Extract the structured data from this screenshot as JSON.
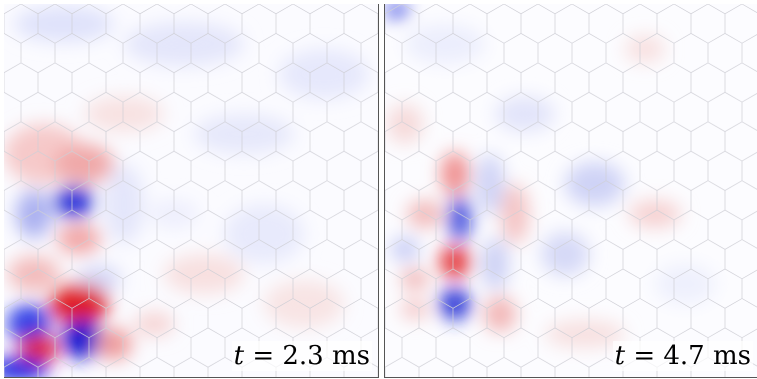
{
  "panels": [
    {
      "id": "left",
      "time_var": "t",
      "equals": "=",
      "time_value": "2.3",
      "unit": "ms"
    },
    {
      "id": "right",
      "time_var": "t",
      "equals": "=",
      "time_value": "4.7",
      "unit": "ms"
    }
  ],
  "colors": {
    "positive": "#e8111a",
    "negative": "#1a1ae0",
    "grid": "#d0d0d0",
    "background": "#ffffff",
    "frame": "#555555"
  }
}
